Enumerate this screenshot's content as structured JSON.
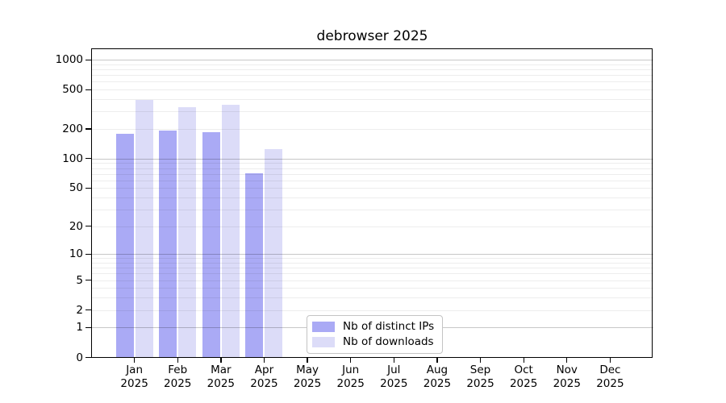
{
  "chart_data": {
    "type": "bar",
    "title": "debrowser 2025",
    "categories": [
      "Jan",
      "Feb",
      "Mar",
      "Apr",
      "May",
      "Jun",
      "Jul",
      "Aug",
      "Sep",
      "Oct",
      "Nov",
      "Dec"
    ],
    "category_sublabel": "2025",
    "series": [
      {
        "name": "Nb of distinct IPs",
        "color": "#AAAAF5",
        "values": [
          177,
          194,
          187,
          71,
          0,
          0,
          0,
          0,
          0,
          0,
          0,
          0
        ]
      },
      {
        "name": "Nb of downloads",
        "color": "#DCDCF8",
        "values": [
          394,
          329,
          352,
          126,
          0,
          0,
          0,
          0,
          0,
          0,
          0,
          0
        ]
      }
    ],
    "y_axis": {
      "scale": "log10(1+v)",
      "tick_values": [
        0,
        1,
        2,
        5,
        10,
        20,
        50,
        100,
        200,
        500,
        1000
      ],
      "tick_labels": [
        "0",
        "1",
        "2",
        "5",
        "10",
        "20",
        "50",
        "100",
        "200",
        "500",
        "1000"
      ],
      "max_value": 1310,
      "grid": true
    },
    "x_axis": {
      "tick_years": "2025"
    },
    "legend": {
      "position": "bottom-center",
      "entries": [
        "Nb of distinct IPs",
        "Nb of downloads"
      ]
    },
    "colors": {
      "bar_distinct_ips": "#AAAAF5",
      "bar_downloads": "#DCDCF8",
      "grid_minor": "rgba(0,0,0,0.07)",
      "grid_major": "rgba(0,0,0,0.22)",
      "axis": "#000000",
      "text": "#000000",
      "background": "#ffffff"
    }
  }
}
